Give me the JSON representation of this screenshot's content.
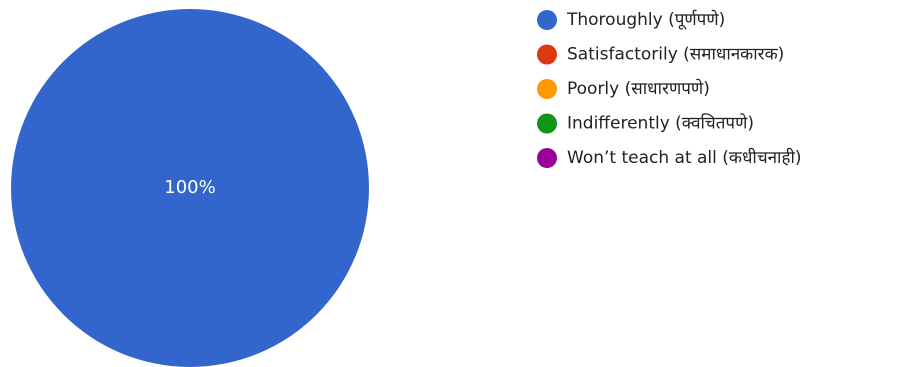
{
  "chart_data": {
    "type": "pie",
    "slices": [
      {
        "label": "Thoroughly (पूर्णपणे)",
        "value": 100,
        "color": "#3366cc"
      },
      {
        "label": "Satisfactorily (समाधानकारक)",
        "value": 0,
        "color": "#dc3912"
      },
      {
        "label": "Poorly (साधारणपणे)",
        "value": 0,
        "color": "#ff9900"
      },
      {
        "label": "Indifferently (क्वचितपणे)",
        "value": 0,
        "color": "#109618"
      },
      {
        "label": "Won’t teach at all (कधीचनाही)",
        "value": 0,
        "color": "#990099"
      }
    ],
    "data_labels": [
      "100%"
    ],
    "legend_position": "right"
  }
}
